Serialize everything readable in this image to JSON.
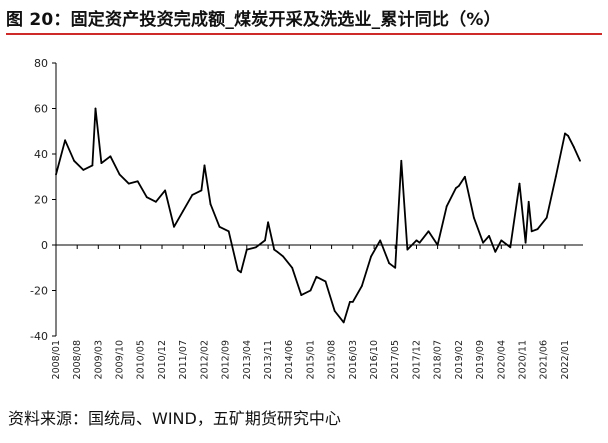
{
  "title": "图 20：固定资产投资完成额_煤炭开采及洗选业_累计同比（%）",
  "source": "资料来源：国统局、WIND，五矿期货研究中心",
  "colors": {
    "line": "#000000",
    "axis": "#000000",
    "title_rule": "#cf2a2a"
  },
  "chart_data": {
    "type": "line",
    "title": "图 20：固定资产投资完成额_煤炭开采及洗选业_累计同比（%）",
    "xlabel": "",
    "ylabel": "",
    "ylim": [
      -40,
      80
    ],
    "yticks": [
      "80",
      "60",
      "40",
      "20",
      "0",
      "-20",
      "-40"
    ],
    "grid": false,
    "legend": "none",
    "xtick_labels": [
      "2008/01",
      "2008/08",
      "2009/03",
      "2009/10",
      "2010/05",
      "2010/12",
      "2011/07",
      "2012/02",
      "2012/09",
      "2013/04",
      "2013/11",
      "2014/06",
      "2015/01",
      "2015/08",
      "2016/03",
      "2016/10",
      "2017/05",
      "2017/12",
      "2018/07",
      "2019/02",
      "2019/09",
      "2020/04",
      "2020/11",
      "2021/06",
      "2022/01"
    ],
    "x": [
      "2008/01",
      "2008/04",
      "2008/07",
      "2008/10",
      "2009/01",
      "2009/02",
      "2009/04",
      "2009/07",
      "2009/10",
      "2010/01",
      "2010/04",
      "2010/07",
      "2010/10",
      "2011/01",
      "2011/04",
      "2011/07",
      "2011/10",
      "2012/01",
      "2012/02",
      "2012/04",
      "2012/07",
      "2012/10",
      "2013/01",
      "2013/02",
      "2013/04",
      "2013/07",
      "2013/10",
      "2013/11",
      "2014/01",
      "2014/02",
      "2014/04",
      "2014/07",
      "2014/10",
      "2015/01",
      "2015/03",
      "2015/06",
      "2015/09",
      "2015/12",
      "2016/02",
      "2016/03",
      "2016/06",
      "2016/09",
      "2016/12",
      "2017/03",
      "2017/05",
      "2017/07",
      "2017/09",
      "2017/12",
      "2018/01",
      "2018/04",
      "2018/07",
      "2018/10",
      "2019/01",
      "2019/02",
      "2019/04",
      "2019/07",
      "2019/10",
      "2019/12",
      "2020/02",
      "2020/04",
      "2020/07",
      "2020/10",
      "2020/12",
      "2021/01",
      "2021/02",
      "2021/04",
      "2021/07",
      "2021/10",
      "2022/01",
      "2022/02",
      "2022/04",
      "2022/06"
    ],
    "series": [
      {
        "values": [
          31,
          46,
          37,
          33,
          35,
          60,
          36,
          39,
          31,
          27,
          28,
          21,
          19,
          24,
          8,
          15,
          22,
          24,
          35,
          18,
          8,
          6,
          -11,
          -12,
          -2,
          -1,
          2,
          10,
          -2,
          -3,
          -5,
          -10,
          -22,
          -20,
          -14,
          -16,
          -29,
          -34,
          -25,
          -25,
          -18,
          -5,
          2,
          -8,
          -10,
          37,
          -2,
          2,
          1,
          6,
          0,
          17,
          25,
          26,
          30,
          12,
          1,
          4,
          -3,
          2,
          -1,
          27,
          1,
          19,
          6,
          7,
          12,
          30,
          49,
          48,
          43,
          37
        ]
      }
    ]
  }
}
